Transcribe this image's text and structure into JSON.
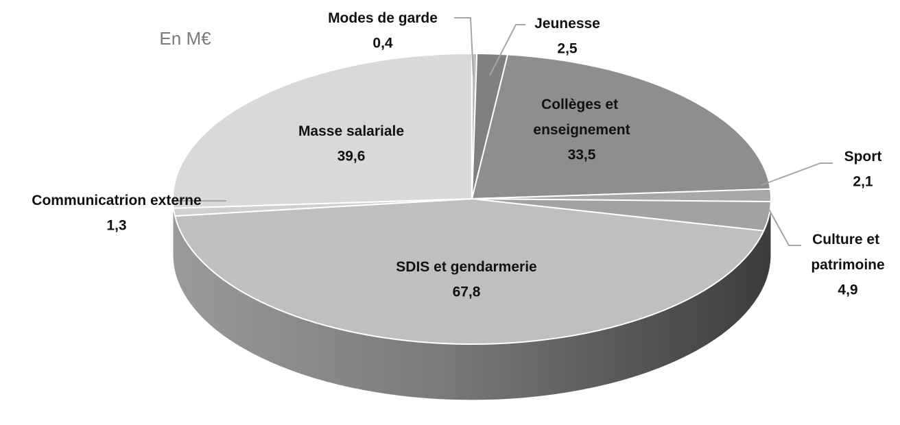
{
  "chart_data": {
    "type": "pie3d",
    "title": "En M€",
    "categories": [
      "Modes de garde",
      "Jeunesse",
      "Collèges et enseignement",
      "Sport",
      "Culture et patrimoine",
      "SDIS et gendarmerie",
      "Communicatrion externe",
      "Masse salariale"
    ],
    "values": [
      0.4,
      2.5,
      33.5,
      2.1,
      4.9,
      67.8,
      1.3,
      39.6
    ],
    "value_labels": [
      "0,4",
      "2,5",
      "33,5",
      "2,1",
      "4,9",
      "67,8",
      "1,3",
      "39,6"
    ],
    "colors": [
      "#bdbdbd",
      "#808080",
      "#8e8e8e",
      "#a8a8a8",
      "#a2a2a2",
      "#bfbfbf",
      "#cfcfcf",
      "#d9d9d9"
    ]
  }
}
